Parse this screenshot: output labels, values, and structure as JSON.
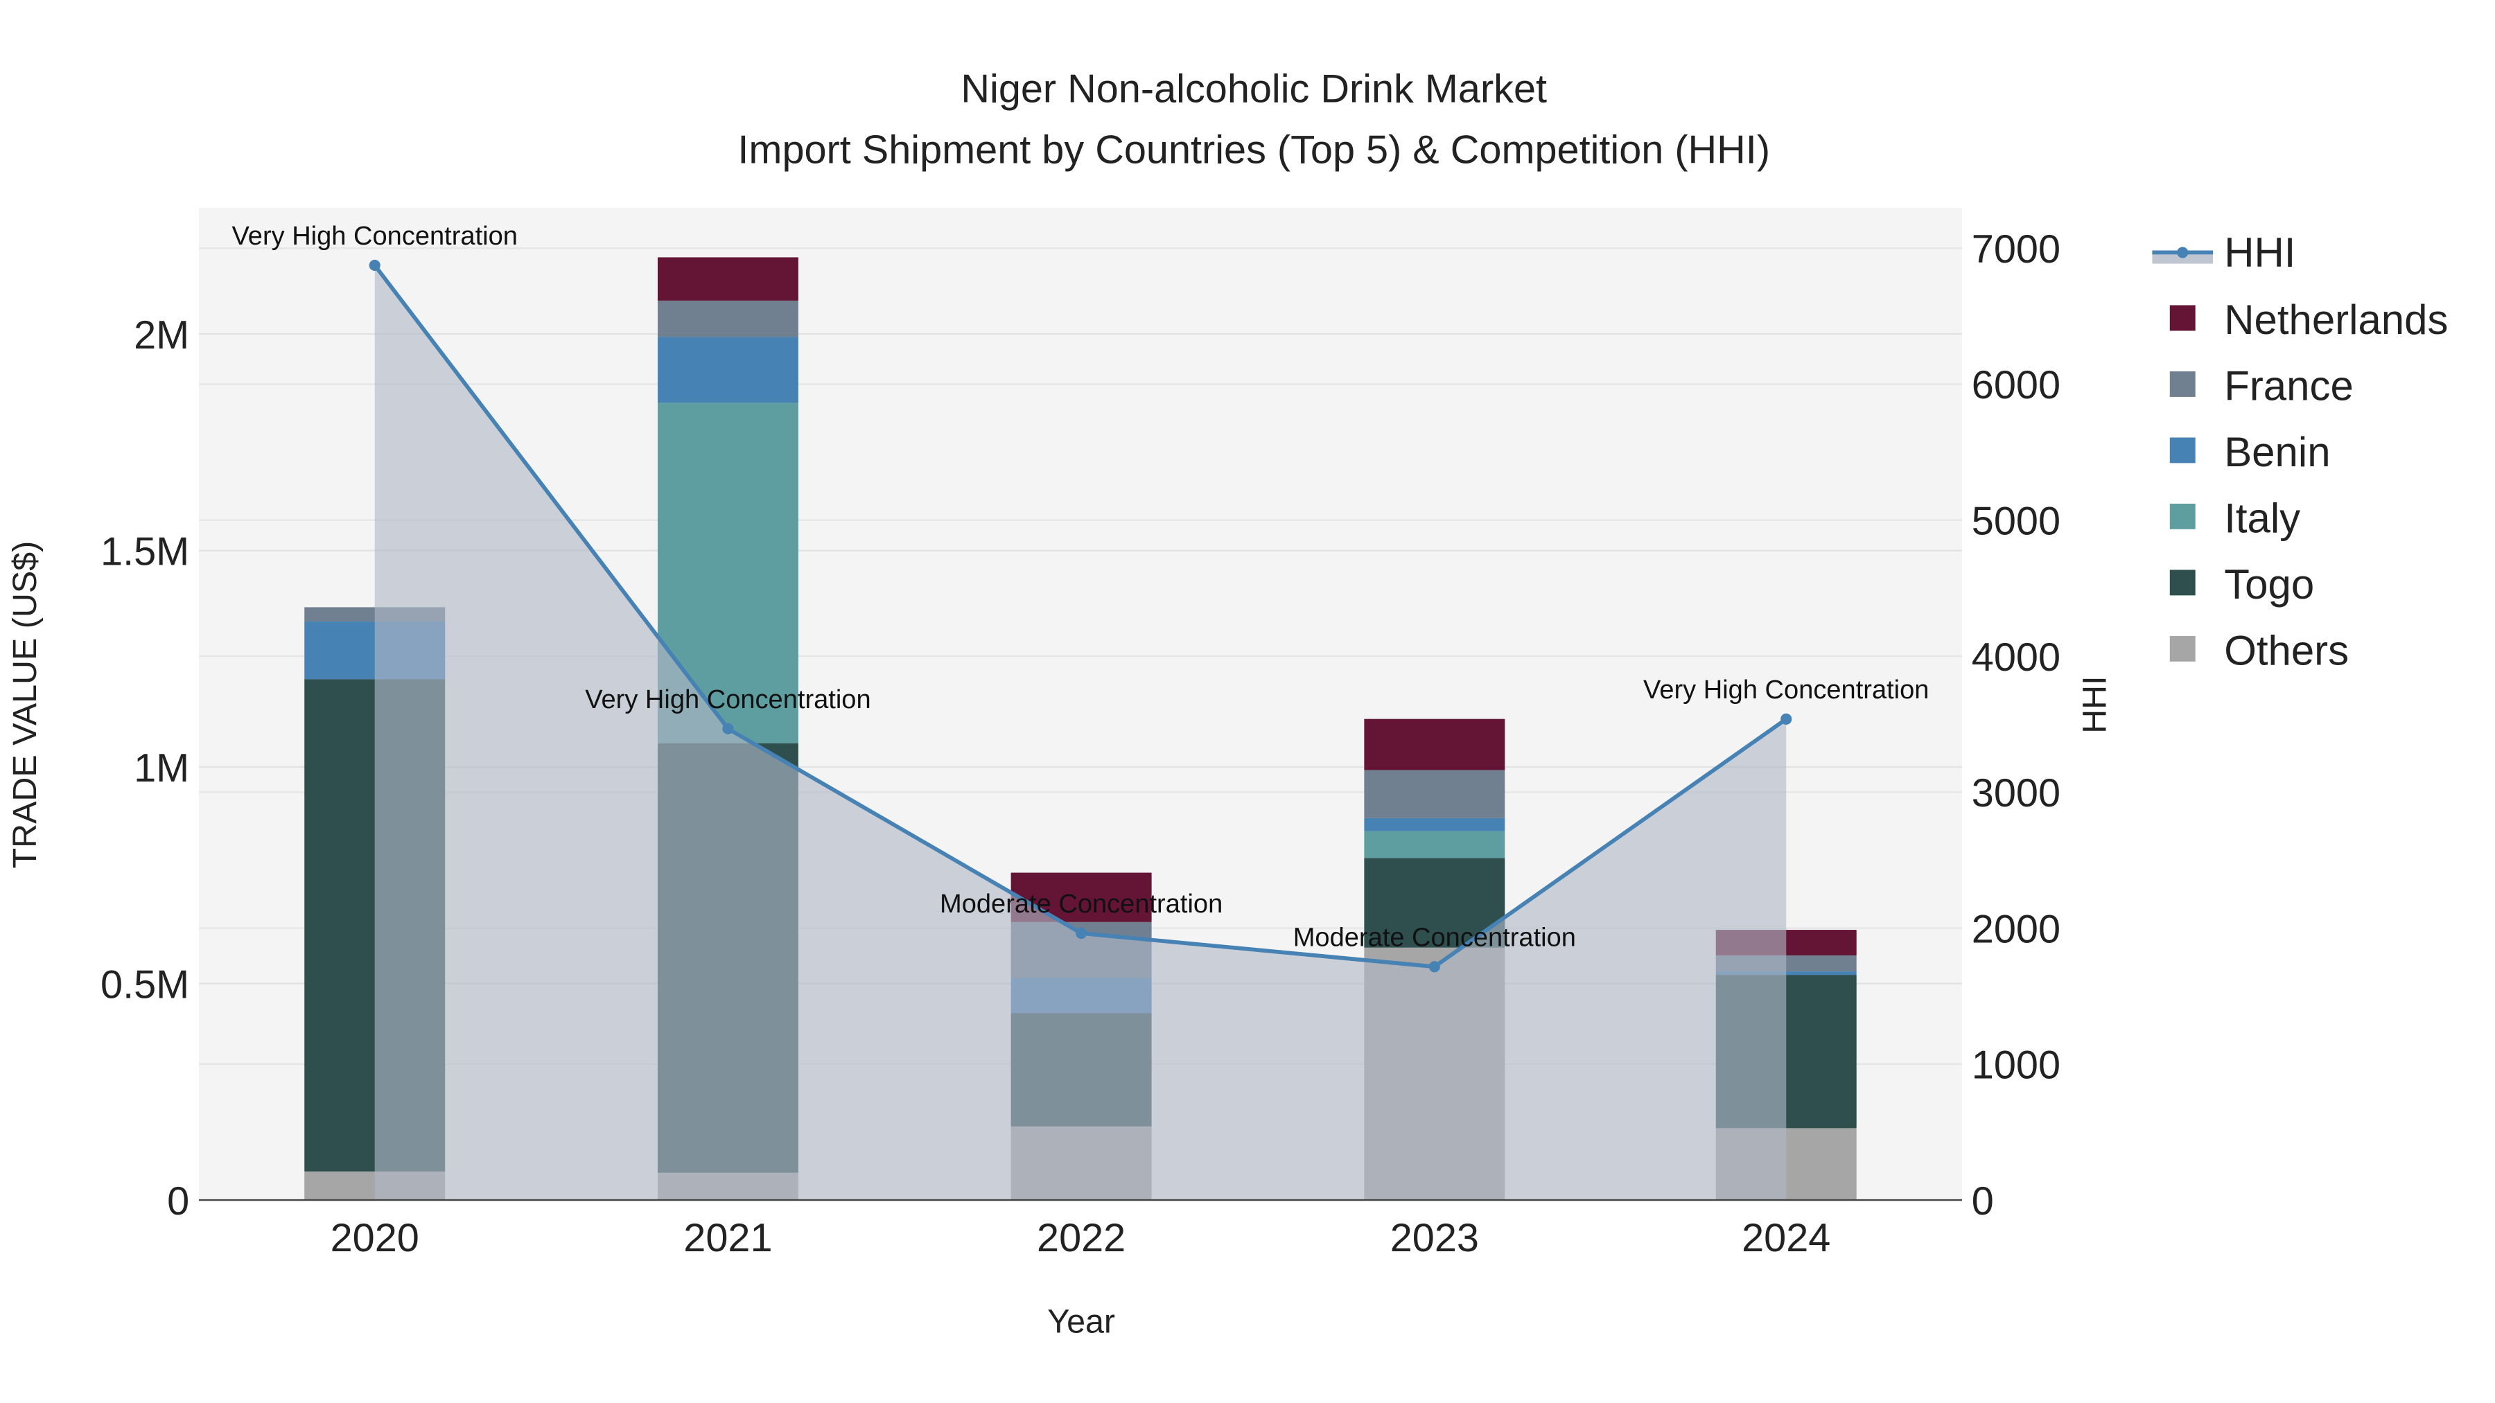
{
  "chart_data": {
    "type": "bar",
    "stacked": true,
    "title_line1": "Niger Non-alcoholic Drink Market",
    "title_line2": "Import Shipment by Countries (Top 5) & Competition (HHI)",
    "xlabel": "Year",
    "ylabel": "TRADE VALUE (US$)",
    "y2label": "HHI",
    "categories": [
      "2020",
      "2021",
      "2022",
      "2023",
      "2024"
    ],
    "ylim": [
      0,
      2200000
    ],
    "y2lim": [
      0,
      7270
    ],
    "yticks": [
      {
        "v": 0,
        "label": "0"
      },
      {
        "v": 500000,
        "label": "0.5M"
      },
      {
        "v": 1000000,
        "label": "1M"
      },
      {
        "v": 1500000,
        "label": "1.5M"
      },
      {
        "v": 2000000,
        "label": "2M"
      }
    ],
    "y2ticks": [
      0,
      1000,
      2000,
      3000,
      4000,
      5000,
      6000,
      7000
    ],
    "legend_position": "right",
    "series": [
      {
        "name": "Others",
        "color": "#a6a6a6",
        "values": [
          66000,
          63000,
          170000,
          583000,
          166000
        ]
      },
      {
        "name": "Togo",
        "color": "#2f4f4f",
        "values": [
          1137000,
          992000,
          262000,
          207000,
          354000
        ]
      },
      {
        "name": "Italy",
        "color": "#5f9ea0",
        "values": [
          0,
          786000,
          0,
          62000,
          0
        ]
      },
      {
        "name": "Benin",
        "color": "#4682b4",
        "values": [
          133000,
          152000,
          81000,
          30000,
          8000
        ]
      },
      {
        "name": "France",
        "color": "#708090",
        "values": [
          33000,
          84000,
          129000,
          111000,
          37000
        ]
      },
      {
        "name": "Netherlands",
        "color": "#641434",
        "values": [
          0,
          100000,
          114000,
          118000,
          59000
        ]
      }
    ],
    "hhi": {
      "name": "HHI",
      "color": "#4682b4",
      "values": [
        6874,
        3466,
        1962,
        1716,
        3537
      ],
      "annotations": [
        "Very High Concentration",
        "Very High Concentration",
        "Moderate Concentration",
        "Moderate Concentration",
        "Very High Concentration"
      ]
    }
  }
}
